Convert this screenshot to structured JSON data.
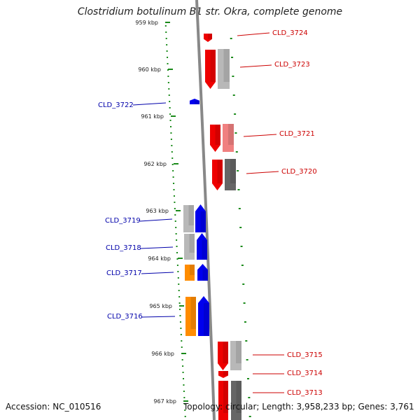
{
  "title": "Clostridium botulinum B1 str. Okra, complete genome",
  "accession_text": "Accession: NC_010516",
  "topology_text": "Topology: circular; Length: 3,958,233 bp; Genes: 3,761",
  "colors": {
    "forward_label": "#cc0000",
    "reverse_label": "#0000aa",
    "tick": "#1a8a1a",
    "backbone": "#888888",
    "red": "#ee0000",
    "blue": "#0000ee",
    "orange": "#ff8c00",
    "gray_light": "#b8b8b8",
    "gray_dark": "#666666",
    "pink": "#f08080"
  },
  "ticks": [
    {
      "label": "959 kbp"
    },
    {
      "label": "960 kbp"
    },
    {
      "label": "961 kbp"
    },
    {
      "label": "962 kbp"
    },
    {
      "label": "963 kbp"
    },
    {
      "label": "964 kbp"
    },
    {
      "label": "965 kbp"
    },
    {
      "label": "966 kbp"
    },
    {
      "label": "967 kbp"
    }
  ],
  "genes": [
    {
      "label": "CLD_3724",
      "strand": "forward"
    },
    {
      "label": "CLD_3723",
      "strand": "forward"
    },
    {
      "label": "CLD_3722",
      "strand": "reverse"
    },
    {
      "label": "CLD_3721",
      "strand": "forward"
    },
    {
      "label": "CLD_3720",
      "strand": "forward"
    },
    {
      "label": "CLD_3719",
      "strand": "reverse"
    },
    {
      "label": "CLD_3718",
      "strand": "reverse"
    },
    {
      "label": "CLD_3717",
      "strand": "reverse"
    },
    {
      "label": "CLD_3716",
      "strand": "reverse"
    },
    {
      "label": "CLD_3715",
      "strand": "forward"
    },
    {
      "label": "CLD_3714",
      "strand": "forward"
    },
    {
      "label": "CLD_3713",
      "strand": "forward"
    }
  ]
}
